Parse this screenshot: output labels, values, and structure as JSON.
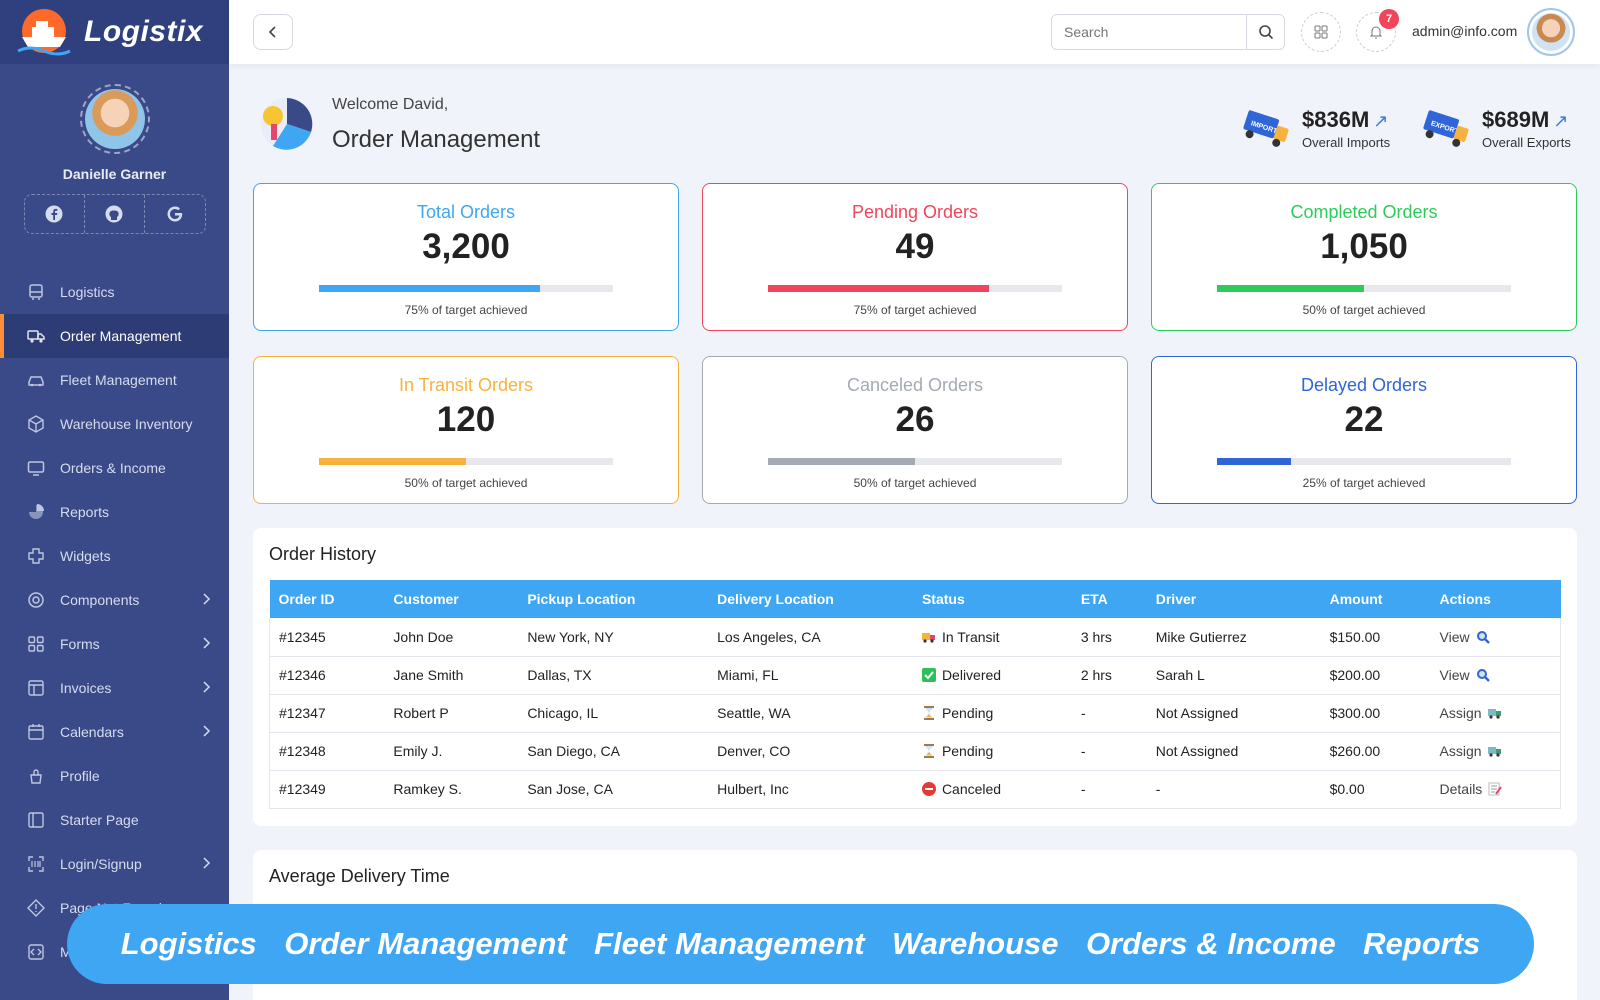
{
  "brand": {
    "name": "Logistix"
  },
  "profile": {
    "name": "Danielle Garner"
  },
  "socials": [
    "facebook-icon",
    "github-icon",
    "google-icon"
  ],
  "nav": [
    {
      "label": "Logistics",
      "icon": "logistics-icon"
    },
    {
      "label": "Order Management",
      "icon": "truck-icon",
      "active": true
    },
    {
      "label": "Fleet Management",
      "icon": "car-icon"
    },
    {
      "label": "Warehouse Inventory",
      "icon": "box-icon"
    },
    {
      "label": "Orders & Income",
      "icon": "monitor-icon"
    },
    {
      "label": "Reports",
      "icon": "chart-icon"
    },
    {
      "label": "Widgets",
      "icon": "puzzle-icon"
    },
    {
      "label": "Components",
      "icon": "settings-icon",
      "chevron": true
    },
    {
      "label": "Forms",
      "icon": "grid-icon",
      "chevron": true
    },
    {
      "label": "Invoices",
      "icon": "table-icon",
      "chevron": true
    },
    {
      "label": "Calendars",
      "icon": "calendar-icon",
      "chevron": true
    },
    {
      "label": "Profile",
      "icon": "user-icon"
    },
    {
      "label": "Starter Page",
      "icon": "layout-icon"
    },
    {
      "label": "Login/Signup",
      "icon": "scan-icon",
      "chevron": true
    },
    {
      "label": "Page Not Found",
      "icon": "diamond-icon"
    },
    {
      "label": "Maintenance",
      "icon": "code-icon"
    }
  ],
  "topbar": {
    "search_placeholder": "Search",
    "notification_count": "7",
    "email": "admin@info.com"
  },
  "header": {
    "welcome": "Welcome David,",
    "title": "Order Management",
    "imports": {
      "value": "$836M",
      "label": "Overall Imports"
    },
    "exports": {
      "value": "$689M",
      "label": "Overall Exports"
    }
  },
  "cards": [
    {
      "title": "Total Orders",
      "value": "3,200",
      "progress": 0.75,
      "caption": "75% of target achieved",
      "color": "#3ea6f2"
    },
    {
      "title": "Pending Orders",
      "value": "49",
      "progress": 0.75,
      "caption": "75% of target achieved",
      "color": "#f0455a"
    },
    {
      "title": "Completed Orders",
      "value": "1,050",
      "progress": 0.5,
      "caption": "50% of target achieved",
      "color": "#2dcc5a"
    },
    {
      "title": "In Transit Orders",
      "value": "120",
      "progress": 0.5,
      "caption": "50% of target achieved",
      "color": "#f7b23e"
    },
    {
      "title": "Canceled Orders",
      "value": "26",
      "progress": 0.5,
      "caption": "50% of target achieved",
      "color": "#a4aab4"
    },
    {
      "title": "Delayed Orders",
      "value": "22",
      "progress": 0.25,
      "caption": "25% of target achieved",
      "color": "#2f65d6"
    }
  ],
  "order_history": {
    "title": "Order History",
    "columns": [
      "Order ID",
      "Customer",
      "Pickup Location",
      "Delivery Location",
      "Status",
      "ETA",
      "Driver",
      "Amount",
      "Actions"
    ],
    "rows": [
      {
        "id": "#12345",
        "customer": "John Doe",
        "pickup": "New York, NY",
        "delivery": "Los Angeles, CA",
        "status": "In Transit",
        "status_icon": "truck-emoji-icon",
        "eta": "3 hrs",
        "driver": "Mike Gutierrez",
        "amount": "$150.00",
        "action": "View",
        "action_icon": "magnifier-icon"
      },
      {
        "id": "#12346",
        "customer": "Jane Smith",
        "pickup": "Dallas, TX",
        "delivery": "Miami, FL",
        "status": "Delivered",
        "status_icon": "check-box-icon",
        "eta": "2 hrs",
        "driver": "Sarah L",
        "amount": "$200.00",
        "action": "View",
        "action_icon": "magnifier-icon"
      },
      {
        "id": "#12347",
        "customer": "Robert P",
        "pickup": "Chicago, IL",
        "delivery": "Seattle, WA",
        "status": "Pending",
        "status_icon": "hourglass-icon",
        "eta": "-",
        "driver": "Not Assigned",
        "amount": "$300.00",
        "action": "Assign",
        "action_icon": "delivery-truck-icon"
      },
      {
        "id": "#12348",
        "customer": "Emily J.",
        "pickup": "San Diego, CA",
        "delivery": "Denver, CO",
        "status": "Pending",
        "status_icon": "hourglass-icon",
        "eta": "-",
        "driver": "Not Assigned",
        "amount": "$260.00",
        "action": "Assign",
        "action_icon": "delivery-truck-icon"
      },
      {
        "id": "#12349",
        "customer": "Ramkey S.",
        "pickup": "San Jose, CA",
        "delivery": "Hulbert, Inc",
        "status": "Canceled",
        "status_icon": "no-entry-icon",
        "eta": "-",
        "driver": "-",
        "amount": "$0.00",
        "action": "Details",
        "action_icon": "memo-icon"
      }
    ]
  },
  "avg_delivery": {
    "title": "Average Delivery Time"
  },
  "banner": [
    "Logistics",
    "Order Management",
    "Fleet Management",
    "Warehouse",
    "Orders & Income",
    "Reports"
  ]
}
